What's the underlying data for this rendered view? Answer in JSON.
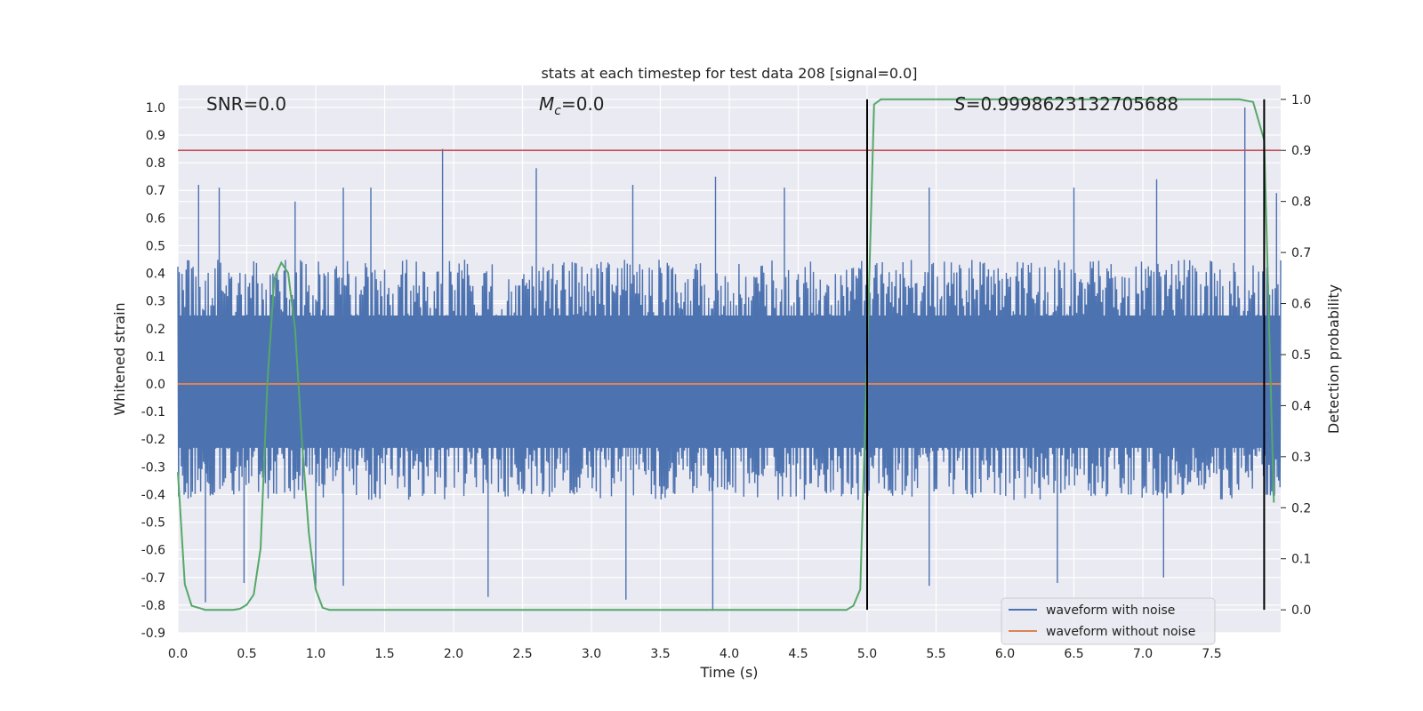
{
  "chart_data": {
    "type": "line",
    "title": "stats at each timestep for test data 208 [signal=0.0]",
    "xlabel": "Time (s)",
    "ylabel": "Whitened strain",
    "y2label": "Detection probability",
    "xlim": [
      0.0,
      8.0
    ],
    "ylim": [
      -0.9,
      1.08
    ],
    "y2lim": [
      -0.045,
      1.0275
    ],
    "x_ticks": [
      "0.0",
      "0.5",
      "1.0",
      "1.5",
      "2.0",
      "2.5",
      "3.0",
      "3.5",
      "4.0",
      "4.5",
      "5.0",
      "5.5",
      "6.0",
      "6.5",
      "7.0",
      "7.5"
    ],
    "y_ticks": [
      "1.0",
      "0.9",
      "0.8",
      "0.7",
      "0.6",
      "0.5",
      "0.4",
      "0.3",
      "0.2",
      "0.1",
      "0.0",
      "-0.1",
      "-0.2",
      "-0.3",
      "-0.4",
      "-0.5",
      "-0.6",
      "-0.7",
      "-0.8",
      "-0.9"
    ],
    "y2_ticks": [
      "1.0",
      "0.9",
      "0.8",
      "0.7",
      "0.6",
      "0.5",
      "0.4",
      "0.3",
      "0.2",
      "0.1",
      "0.0"
    ],
    "grid": true,
    "legend_position": "lower-right",
    "annotations": {
      "snr": "SNR=0.0",
      "mc_sym": "M",
      "mc_sub": "c",
      "mc_rest": "=0.0",
      "s_sym": "S",
      "s_rest": "=0.9998623132705688"
    },
    "series": [
      {
        "name": "waveform with noise",
        "color": "#4c72b0",
        "note": "dense noise, approx. envelope",
        "envelope_upper": 0.45,
        "envelope_lower": -0.42,
        "peaks": [
          [
            0.15,
            0.72
          ],
          [
            0.3,
            0.71
          ],
          [
            0.85,
            0.66
          ],
          [
            1.2,
            0.71
          ],
          [
            1.4,
            0.71
          ],
          [
            1.92,
            0.85
          ],
          [
            2.6,
            0.78
          ],
          [
            3.3,
            0.72
          ],
          [
            3.9,
            0.75
          ],
          [
            4.4,
            0.71
          ],
          [
            5.45,
            0.71
          ],
          [
            6.5,
            0.71
          ],
          [
            7.1,
            0.74
          ],
          [
            7.74,
            1.0
          ],
          [
            7.97,
            0.69
          ]
        ],
        "troughs": [
          [
            0.2,
            -0.79
          ],
          [
            0.48,
            -0.72
          ],
          [
            1.0,
            -0.73
          ],
          [
            1.2,
            -0.73
          ],
          [
            2.25,
            -0.77
          ],
          [
            3.25,
            -0.78
          ],
          [
            3.88,
            -0.82
          ],
          [
            5.45,
            -0.73
          ],
          [
            6.38,
            -0.72
          ],
          [
            7.15,
            -0.7
          ]
        ]
      },
      {
        "name": "waveform without noise",
        "color": "#dd8452",
        "x": [
          0.0,
          8.0
        ],
        "y": [
          0.0,
          0.0
        ]
      },
      {
        "name": "",
        "axis": "right",
        "color": "#55a868",
        "x": [
          0.0,
          0.05,
          0.1,
          0.2,
          0.3,
          0.4,
          0.45,
          0.5,
          0.55,
          0.6,
          0.65,
          0.7,
          0.75,
          0.8,
          0.85,
          0.9,
          0.95,
          1.0,
          1.05,
          1.1,
          1.5,
          2.0,
          3.0,
          4.0,
          4.6,
          4.85,
          4.9,
          4.95,
          5.0,
          5.05,
          5.1,
          5.5,
          6.0,
          6.5,
          7.0,
          7.5,
          7.7,
          7.8,
          7.88,
          7.95
        ],
        "y": [
          0.27,
          0.05,
          0.008,
          0.0,
          0.0,
          0.0,
          0.002,
          0.01,
          0.03,
          0.12,
          0.45,
          0.65,
          0.68,
          0.66,
          0.55,
          0.33,
          0.15,
          0.04,
          0.004,
          0.0,
          0.0,
          0.0,
          0.0,
          0.0,
          0.0,
          0.0,
          0.008,
          0.04,
          0.5,
          0.99,
          1.0,
          1.0,
          1.0,
          1.0,
          1.0,
          1.0,
          1.0,
          0.995,
          0.92,
          0.21
        ]
      }
    ],
    "threshold_line": {
      "axis": "right",
      "y": 0.9,
      "color": "#c44e52"
    },
    "vertical_markers": {
      "x": [
        5.0,
        7.88
      ],
      "y_range": [
        -0.81,
        1.0
      ],
      "color": "#000000"
    }
  }
}
